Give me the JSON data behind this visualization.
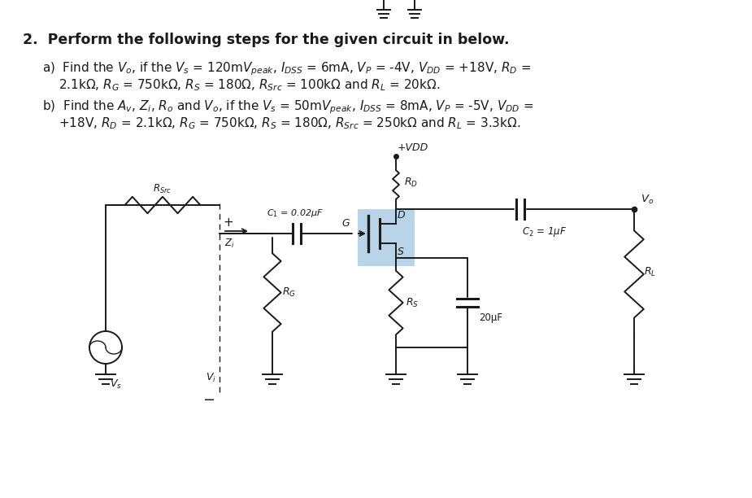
{
  "title": "2.  Perform the following steps for the given circuit in below.",
  "background_color": "#ffffff",
  "text_color": "#1a1a1a",
  "mosfet_fill": "#b8d4e8",
  "lw": 1.4,
  "fig_w": 9.25,
  "fig_h": 6.12,
  "dpi": 100,
  "text_parts": {
    "heading": "2.  Perform the following steps for the given circuit in below.",
    "a_line1": "a)  Find the $V_o$, if the $V_s$ = 120m$V_{peak}$, $I_{DSS}$ = 6mA, $V_P$ = -4V, $V_{DD}$ = +18V, $R_D$ =",
    "a_line2": "2.1k$\\Omega$, $R_G$ = 750k$\\Omega$, $R_S$ = 180$\\Omega$, $R_{Src}$ = 100k$\\Omega$ and $R_L$ = 20k$\\Omega$.",
    "b_line1": "b)  Find the $A_v$, $Z_i$, $R_o$ and $V_o$, if the $V_s$ = 50m$V_{peak}$, $I_{DSS}$ = 8mA, $V_P$ = -5V, $V_{DD}$ =",
    "b_line2": "+18V, $R_D$ = 2.1k$\\Omega$, $R_G$ = 750k$\\Omega$, $R_S$ = 180$\\Omega$, $R_{Src}$ = 250k$\\Omega$ and $R_L$ = 3.3k$\\Omega$."
  }
}
